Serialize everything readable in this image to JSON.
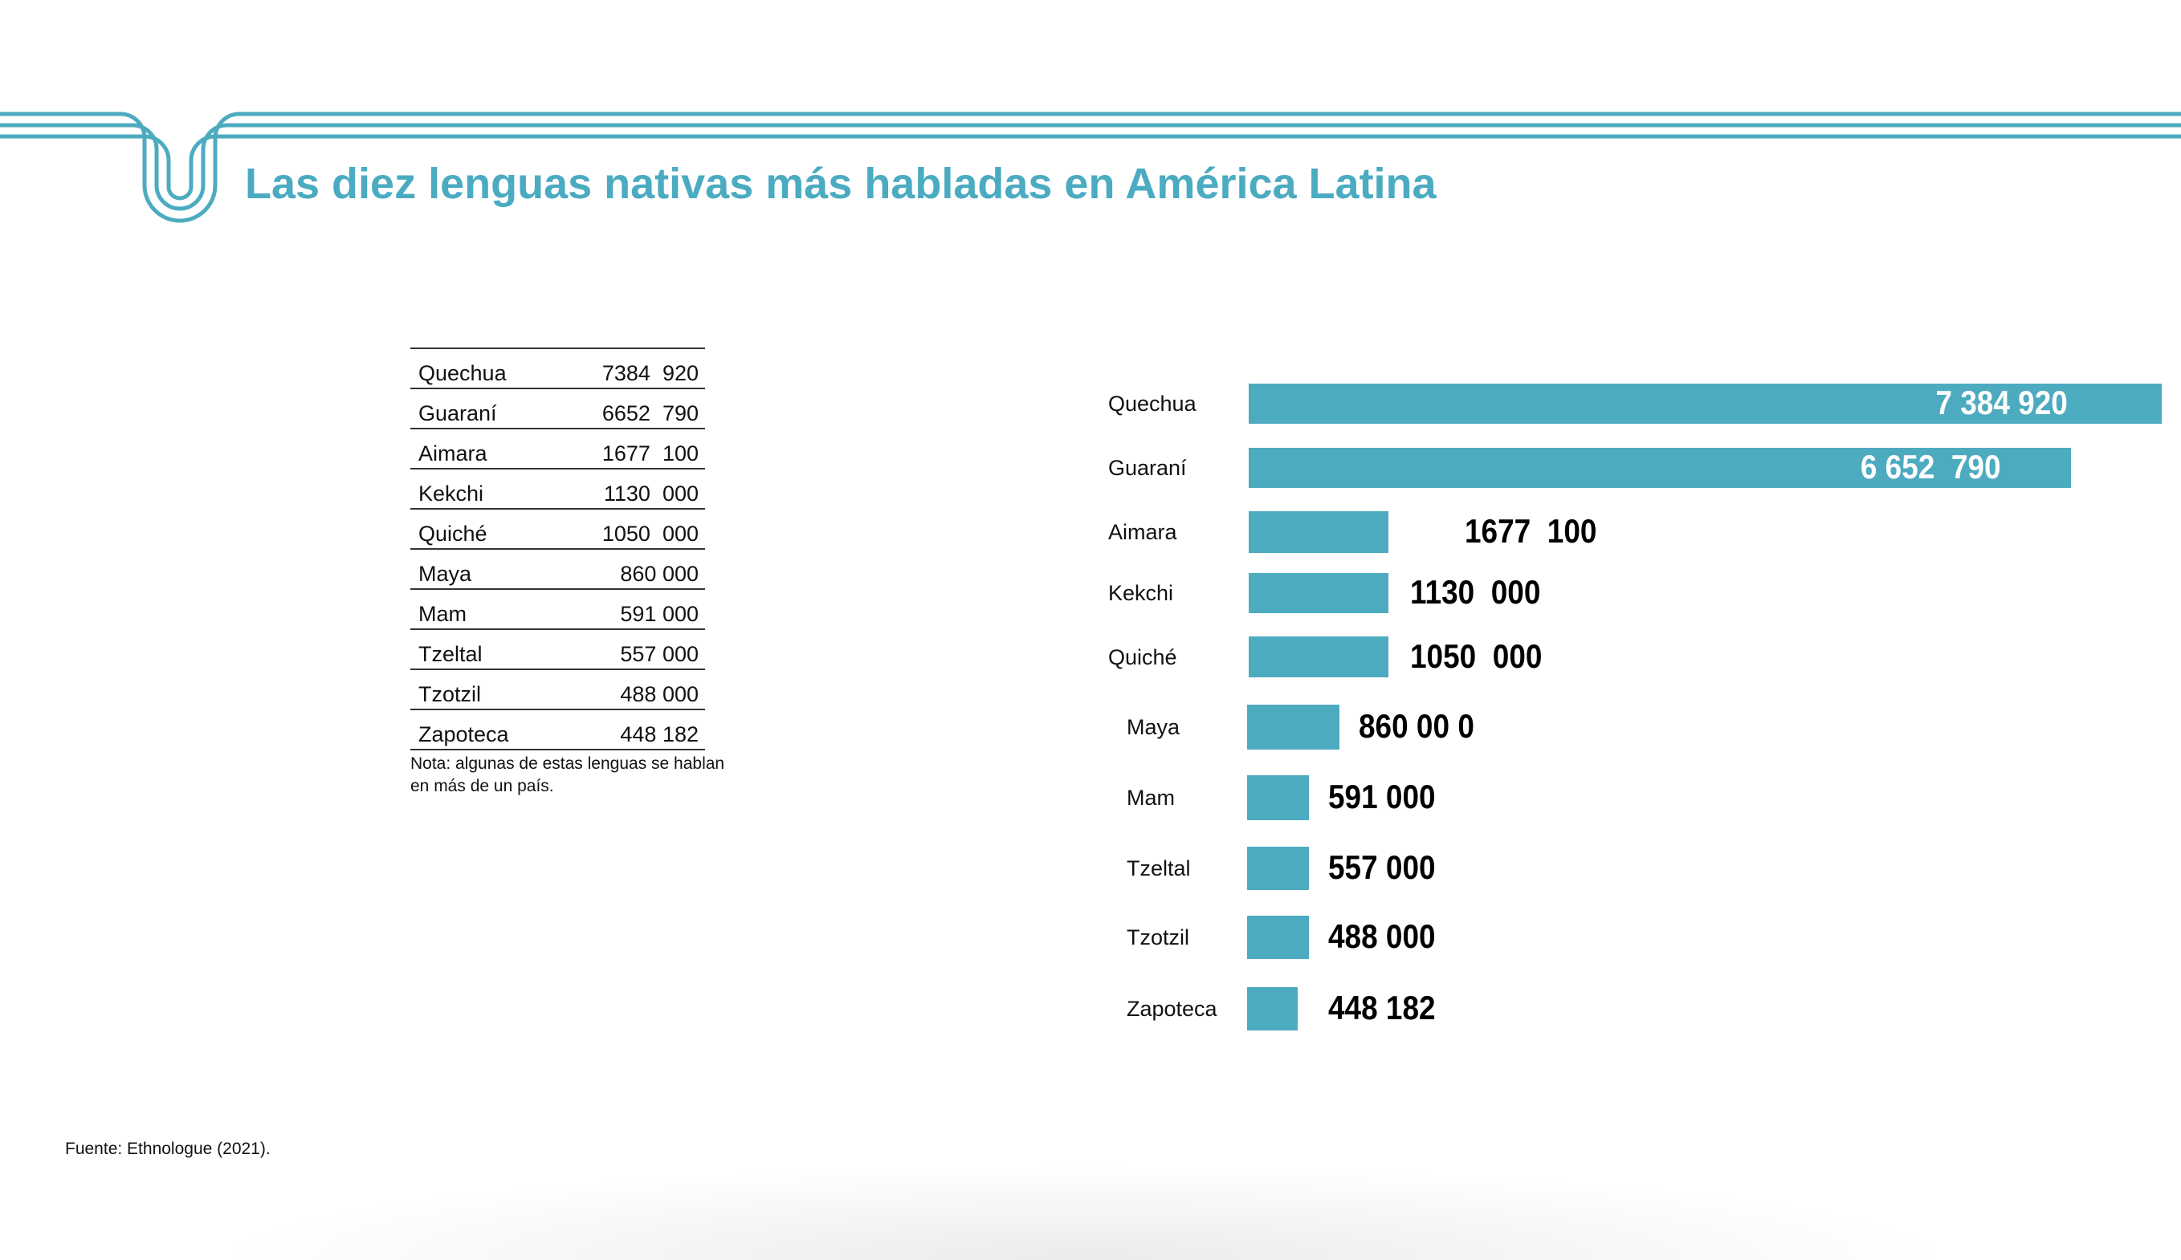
{
  "title": "Las diez lenguas nativas más habladas en América Latina",
  "accent_color": "#4dabc0",
  "table": {
    "rows": [
      {
        "language": "Quechua",
        "speakers": "7384  920"
      },
      {
        "language": "Guaraní",
        "speakers": "6652  790"
      },
      {
        "language": "Aimara",
        "speakers": "1677  100"
      },
      {
        "language": "Kekchi",
        "speakers": "1130  000"
      },
      {
        "language": "Quiché",
        "speakers": "1050  000"
      },
      {
        "language": "Maya",
        "speakers": "860 000"
      },
      {
        "language": "Mam",
        "speakers": "591 000"
      },
      {
        "language": "Tzeltal",
        "speakers": "557 000"
      },
      {
        "language": "Tzotzil",
        "speakers": "488 000"
      },
      {
        "language": "Zapoteca",
        "speakers": "448 182"
      }
    ],
    "note": "Nota: algunas de estas lenguas se hablan en más de un país."
  },
  "source": "Fuente: Ethnologue (2021).",
  "chart_data": {
    "type": "bar",
    "orientation": "horizontal",
    "categories": [
      "Quechua",
      "Guaraní",
      "Aimara",
      "Kekchi",
      "Quiché",
      "Maya",
      "Mam",
      "Tzeltal",
      "Tzotzil",
      "Zapoteca"
    ],
    "values": [
      7384920,
      6652790,
      1677100,
      1130000,
      1050000,
      860000,
      591000,
      557000,
      488000,
      448182
    ],
    "data_labels": [
      "7 384 920",
      "6 652  790",
      "1677  100",
      "1130  000",
      "1050  000",
      "860 00 0",
      "591 000",
      "557 000",
      "488 000",
      "448 182"
    ],
    "title": "",
    "xlabel": "",
    "ylabel": "",
    "grid": false,
    "bar_color": "#4dabc0"
  }
}
